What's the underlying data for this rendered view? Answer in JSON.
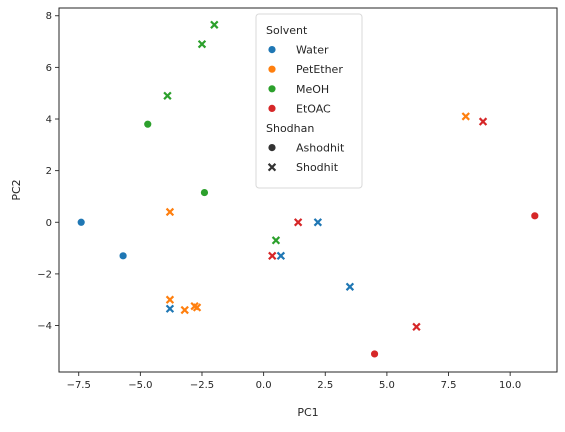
{
  "chart_data": {
    "type": "scatter",
    "xlabel": "PC1",
    "ylabel": "PC2",
    "xlim": [
      -8.3,
      11.9
    ],
    "ylim": [
      -5.8,
      8.3
    ],
    "xticks": [
      -7.5,
      -5.0,
      -2.5,
      0.0,
      2.5,
      5.0,
      7.5,
      10.0
    ],
    "xtick_labels": [
      "−7.5",
      "−5.0",
      "−2.5",
      "0.0",
      "2.5",
      "5.0",
      "7.5",
      "10.0"
    ],
    "yticks": [
      -4,
      -2,
      0,
      2,
      4,
      6,
      8
    ],
    "ytick_labels": [
      "−4",
      "−2",
      "0",
      "2",
      "4",
      "6",
      "8"
    ],
    "grid": false,
    "legend": {
      "placement": "upper-center",
      "hue_title": "Solvent",
      "style_title": "Shodhan",
      "hue_entries": [
        {
          "label": "Water",
          "color": "#1f77b4"
        },
        {
          "label": "PetEther",
          "color": "#ff7f0e"
        },
        {
          "label": "MeOH",
          "color": "#2ca02c"
        },
        {
          "label": "EtOAC",
          "color": "#d62728"
        }
      ],
      "style_entries": [
        {
          "label": "Ashodhit",
          "marker": "circle"
        },
        {
          "label": "Shodhit",
          "marker": "x"
        }
      ]
    },
    "series": [
      {
        "name": "Water",
        "color": "#1f77b4",
        "points": [
          {
            "x": -7.4,
            "y": 0.0,
            "marker": "circle"
          },
          {
            "x": -5.7,
            "y": -1.3,
            "marker": "circle"
          },
          {
            "x": -3.8,
            "y": -3.35,
            "marker": "x"
          },
          {
            "x": 0.7,
            "y": -1.3,
            "marker": "x"
          },
          {
            "x": 2.2,
            "y": 0.0,
            "marker": "x"
          },
          {
            "x": 3.5,
            "y": -2.5,
            "marker": "x"
          }
        ]
      },
      {
        "name": "PetEther",
        "color": "#ff7f0e",
        "points": [
          {
            "x": -3.8,
            "y": 0.4,
            "marker": "x"
          },
          {
            "x": -3.8,
            "y": -3.0,
            "marker": "x"
          },
          {
            "x": -3.2,
            "y": -3.4,
            "marker": "x"
          },
          {
            "x": -2.8,
            "y": -3.25,
            "marker": "x"
          },
          {
            "x": -2.7,
            "y": -3.3,
            "marker": "x"
          },
          {
            "x": 8.2,
            "y": 4.1,
            "marker": "x"
          }
        ]
      },
      {
        "name": "MeOH",
        "color": "#2ca02c",
        "points": [
          {
            "x": -4.7,
            "y": 3.8,
            "marker": "circle"
          },
          {
            "x": -2.4,
            "y": 1.15,
            "marker": "circle"
          },
          {
            "x": -3.9,
            "y": 4.9,
            "marker": "x"
          },
          {
            "x": -2.5,
            "y": 6.9,
            "marker": "x"
          },
          {
            "x": -2.0,
            "y": 7.65,
            "marker": "x"
          },
          {
            "x": 0.5,
            "y": -0.7,
            "marker": "x"
          }
        ]
      },
      {
        "name": "EtOAC",
        "color": "#d62728",
        "points": [
          {
            "x": 4.5,
            "y": -5.1,
            "marker": "circle"
          },
          {
            "x": 11.0,
            "y": 0.25,
            "marker": "circle"
          },
          {
            "x": 0.35,
            "y": -1.3,
            "marker": "x"
          },
          {
            "x": 1.4,
            "y": 0.0,
            "marker": "x"
          },
          {
            "x": 6.2,
            "y": -4.05,
            "marker": "x"
          },
          {
            "x": 8.9,
            "y": 3.9,
            "marker": "x"
          }
        ]
      }
    ]
  }
}
